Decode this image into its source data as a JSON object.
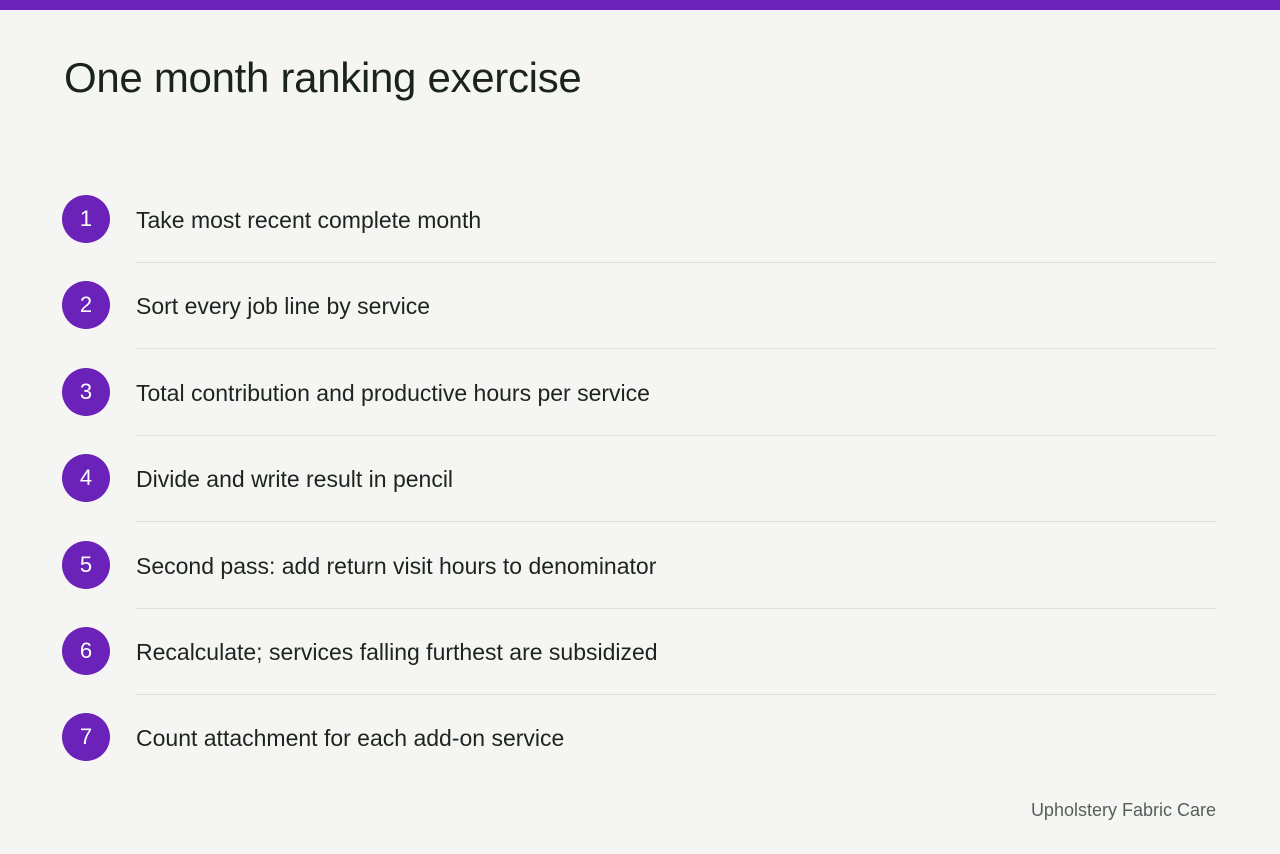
{
  "colors": {
    "accent": "#6a22b8",
    "background": "#f5f6f4",
    "text": "#1d241f",
    "muted_text": "#55605a",
    "divider": "#dcdedb"
  },
  "title": "One month ranking exercise",
  "steps": [
    {
      "number": "1",
      "text": "Take most recent complete month"
    },
    {
      "number": "2",
      "text": "Sort every job line by service"
    },
    {
      "number": "3",
      "text": "Total contribution and productive hours per service"
    },
    {
      "number": "4",
      "text": "Divide and write result in pencil"
    },
    {
      "number": "5",
      "text": "Second pass: add return visit hours to denominator"
    },
    {
      "number": "6",
      "text": "Recalculate; services falling furthest are subsidized"
    },
    {
      "number": "7",
      "text": "Count attachment for each add-on service"
    }
  ],
  "footer": {
    "brand": "Upholstery Fabric Care"
  }
}
